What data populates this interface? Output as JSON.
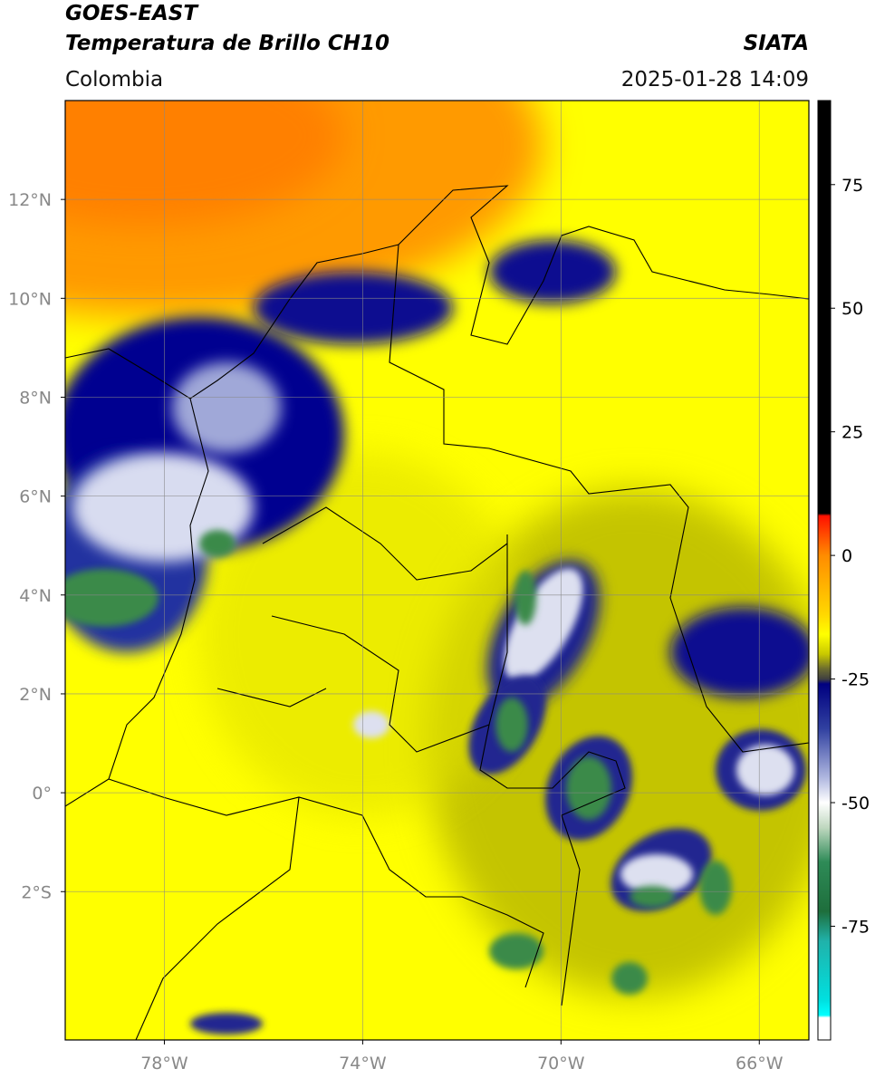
{
  "header": {
    "title": "GOES-EAST",
    "subtitle": "Temperatura de Brillo CH10",
    "region": "Colombia",
    "source": "SIATA",
    "datetime": "2025-01-28 14:09"
  },
  "map": {
    "xlim": [
      -80,
      -65
    ],
    "ylim": [
      -5,
      14
    ],
    "grid": true,
    "xticks": [
      {
        "value": -78,
        "label": "78°W"
      },
      {
        "value": -74,
        "label": "74°W"
      },
      {
        "value": -70,
        "label": "70°W"
      },
      {
        "value": -66,
        "label": "66°W"
      }
    ],
    "yticks": [
      {
        "value": 12,
        "label": "12°N"
      },
      {
        "value": 10,
        "label": "10°N"
      },
      {
        "value": 8,
        "label": "8°N"
      },
      {
        "value": 6,
        "label": "6°N"
      },
      {
        "value": 4,
        "label": "4°N"
      },
      {
        "value": 2,
        "label": "2°N"
      },
      {
        "value": 0,
        "label": "0°"
      },
      {
        "value": -2,
        "label": "2°S"
      }
    ]
  },
  "colorbar": {
    "clim": [
      -98,
      92
    ],
    "ticks": [
      75,
      50,
      25,
      0,
      -25,
      -50,
      -75
    ],
    "colormap": [
      {
        "value": 92,
        "color": "#000000"
      },
      {
        "value": 8.5,
        "color": "#000000"
      },
      {
        "value": 8,
        "color": "#ff1000"
      },
      {
        "value": 0,
        "color": "#ff8c00"
      },
      {
        "value": -12,
        "color": "#ffd800"
      },
      {
        "value": -16,
        "color": "#ffff00"
      },
      {
        "value": -20,
        "color": "#c8c800"
      },
      {
        "value": -23,
        "color": "#6a6a30"
      },
      {
        "value": -25,
        "color": "#404040"
      },
      {
        "value": -26,
        "color": "#000080"
      },
      {
        "value": -35,
        "color": "#3040a0"
      },
      {
        "value": -45,
        "color": "#b0b8e0"
      },
      {
        "value": -50,
        "color": "#ffffff"
      },
      {
        "value": -55,
        "color": "#c0d8c0"
      },
      {
        "value": -62,
        "color": "#2e8b57"
      },
      {
        "value": -72,
        "color": "#1e6e3c"
      },
      {
        "value": -78,
        "color": "#20b2aa"
      },
      {
        "value": -90,
        "color": "#00e0e0"
      },
      {
        "value": -93,
        "color": "#00ffff"
      },
      {
        "value": -93.5,
        "color": "#ffffff"
      },
      {
        "value": -98,
        "color": "#ffffff"
      }
    ]
  }
}
